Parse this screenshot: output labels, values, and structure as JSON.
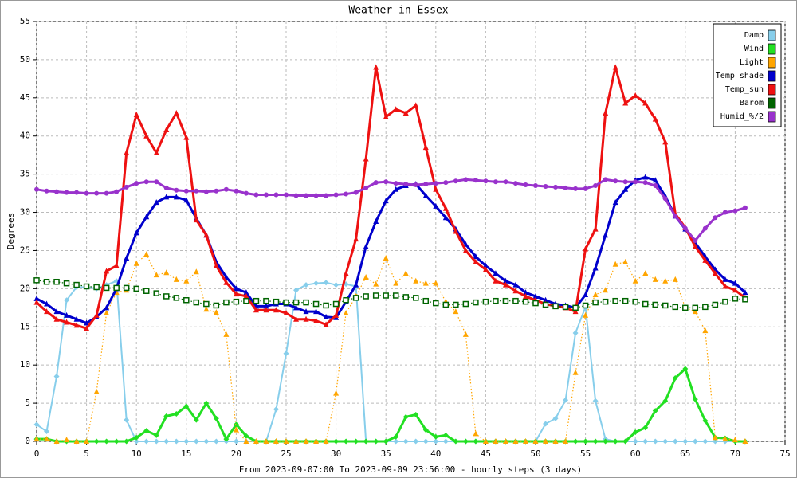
{
  "chart_data": {
    "type": "line",
    "title": "Weather in Essex",
    "ylabel": "Degrees",
    "xlabel": "From 2023-09-07:00 To 2023-09-09 23:56:00 - hourly steps (3 days)",
    "x": [
      0,
      1,
      2,
      3,
      4,
      5,
      6,
      7,
      8,
      9,
      10,
      11,
      12,
      13,
      14,
      15,
      16,
      17,
      18,
      19,
      20,
      21,
      22,
      23,
      24,
      25,
      26,
      27,
      28,
      29,
      30,
      31,
      32,
      33,
      34,
      35,
      36,
      37,
      38,
      39,
      40,
      41,
      42,
      43,
      44,
      45,
      46,
      47,
      48,
      49,
      50,
      51,
      52,
      53,
      54,
      55,
      56,
      57,
      58,
      59,
      60,
      61,
      62,
      63,
      64,
      65,
      66,
      67,
      68,
      69,
      70,
      71
    ],
    "xlim": [
      0,
      75
    ],
    "xticks": [
      0,
      5,
      10,
      15,
      20,
      25,
      30,
      35,
      40,
      45,
      50,
      55,
      60,
      65,
      70,
      75
    ],
    "ylim": [
      0,
      55
    ],
    "yticks": [
      0,
      5,
      10,
      15,
      20,
      25,
      30,
      35,
      40,
      45,
      50,
      55
    ],
    "grid": true,
    "legend": "upper right",
    "series": [
      {
        "name": "Damp",
        "color": "#87ceeb",
        "marker": "diamond",
        "line_style": "solid",
        "values": [
          2.2,
          1.3,
          8.5,
          18.5,
          20.2,
          20.2,
          20,
          20.5,
          21,
          2.8,
          0,
          0,
          0,
          0,
          0,
          0,
          0,
          0,
          0,
          0,
          0,
          0,
          0,
          0,
          4.2,
          11.5,
          19.8,
          20.5,
          20.7,
          20.8,
          20.5,
          20.6,
          20.3,
          0,
          0,
          0,
          0,
          0,
          0,
          0,
          0,
          0,
          0,
          0,
          0,
          0,
          0,
          0,
          0,
          0,
          0,
          2.3,
          3,
          5.4,
          14.2,
          17.6,
          5.3,
          0.3,
          0,
          0,
          0,
          0,
          0,
          0,
          0,
          0,
          0,
          0,
          0,
          0,
          0,
          0
        ]
      },
      {
        "name": "Wind",
        "color": "#22e022",
        "marker": "diamond",
        "line_style": "thick",
        "values": [
          0.3,
          0.3,
          0,
          0,
          0,
          0,
          0,
          0,
          0,
          0,
          0.5,
          1.4,
          0.8,
          3.3,
          3.6,
          4.6,
          2.8,
          5,
          3,
          0.3,
          2.2,
          0.7,
          0,
          0,
          0,
          0,
          0,
          0,
          0,
          0,
          0,
          0,
          0,
          0,
          0,
          0,
          0.6,
          3.2,
          3.5,
          1.5,
          0.6,
          0.8,
          0,
          0,
          0,
          0,
          0,
          0,
          0,
          0,
          0,
          0,
          0,
          0,
          0,
          0,
          0,
          0,
          0,
          0,
          1.2,
          1.8,
          4,
          5.3,
          8.3,
          9.5,
          5.5,
          2.7,
          0.5,
          0.4,
          0,
          0
        ]
      },
      {
        "name": "Light",
        "color": "#ffa500",
        "marker": "triangle",
        "line_style": "dotted",
        "values": [
          0.3,
          0.3,
          0,
          0.2,
          0,
          0,
          6.5,
          16.8,
          19.5,
          19.8,
          23.3,
          24.5,
          21.8,
          22.1,
          21.2,
          21,
          22.2,
          17.3,
          16.9,
          14,
          1.5,
          0,
          0,
          0,
          0,
          0,
          0,
          0,
          0,
          0,
          6.3,
          16.8,
          19,
          21.5,
          20.6,
          24,
          20.7,
          22,
          21,
          20.7,
          20.7,
          18.3,
          17,
          14,
          1,
          0,
          0,
          0,
          0,
          0,
          0,
          0,
          0,
          0,
          9,
          16.5,
          19.2,
          19.8,
          23.2,
          23.5,
          21,
          22,
          21.2,
          21,
          21.2,
          17.5,
          17,
          14.5,
          0.5,
          0.3,
          0.2,
          0
        ]
      },
      {
        "name": "Temp_shade",
        "color": "#0000cc",
        "marker": "triangle",
        "line_style": "thick",
        "values": [
          18.7,
          18,
          17,
          16.5,
          16,
          15.5,
          16.3,
          17.5,
          20,
          24,
          27.3,
          29.4,
          31.3,
          32,
          32,
          31.6,
          29.2,
          27,
          23.5,
          21.5,
          20,
          19.5,
          17.7,
          17.7,
          18,
          18,
          17.5,
          17,
          17,
          16.3,
          16.2,
          18.3,
          20.5,
          25.5,
          28.8,
          31.5,
          33,
          33.5,
          33.7,
          32.2,
          30.8,
          29.3,
          27.8,
          25.8,
          24.2,
          23,
          22,
          21,
          20.5,
          19.5,
          19,
          18.5,
          18,
          17.8,
          17.5,
          19.2,
          22.7,
          27,
          31.3,
          33,
          34.2,
          34.6,
          34.2,
          32.1,
          29.5,
          27.8,
          26,
          24.2,
          22.5,
          21.2,
          20.7,
          19.5
        ]
      },
      {
        "name": "Temp_sun",
        "color": "#ee1111",
        "marker": "triangle",
        "line_style": "thick",
        "values": [
          18.2,
          17,
          16,
          15.6,
          15.2,
          14.8,
          16.5,
          22.3,
          23,
          37.8,
          42.8,
          40,
          37.8,
          40.8,
          43,
          39.8,
          29,
          27,
          23,
          20.8,
          19.3,
          19,
          17.2,
          17.2,
          17.2,
          16.8,
          16,
          16,
          15.8,
          15.3,
          16.5,
          22,
          26.5,
          37,
          49,
          42.5,
          43.5,
          43,
          44,
          38.5,
          33,
          30.5,
          27.5,
          25,
          23.5,
          22.5,
          21,
          20.5,
          19.7,
          19,
          18.5,
          18,
          17.7,
          17.5,
          17,
          25.2,
          27.8,
          43,
          49,
          44.3,
          45.3,
          44.3,
          42.2,
          39.2,
          29.8,
          28,
          25.5,
          23.7,
          22,
          20.3,
          19.8,
          18.8
        ]
      },
      {
        "name": "Barom",
        "color": "#006400",
        "marker": "square",
        "line_style": "dotted",
        "values": [
          21.1,
          20.9,
          20.9,
          20.7,
          20.5,
          20.3,
          20.2,
          20.1,
          20.1,
          20.1,
          20,
          19.7,
          19.4,
          19,
          18.8,
          18.5,
          18.2,
          18,
          17.8,
          18.2,
          18.3,
          18.4,
          18.4,
          18.4,
          18.3,
          18.2,
          18.2,
          18.2,
          18,
          17.8,
          18,
          18.5,
          18.8,
          19,
          19.1,
          19.1,
          19.1,
          18.9,
          18.8,
          18.4,
          18.1,
          17.9,
          17.9,
          18,
          18.2,
          18.3,
          18.4,
          18.4,
          18.4,
          18.3,
          18.1,
          17.9,
          17.7,
          17.6,
          17.5,
          17.8,
          18.2,
          18.3,
          18.4,
          18.4,
          18.3,
          18,
          17.9,
          17.8,
          17.6,
          17.5,
          17.5,
          17.6,
          17.9,
          18.3,
          18.7,
          18.6
        ]
      },
      {
        "name": "Humid_%/2",
        "color": "#9932cc",
        "marker": "circle",
        "line_style": "thick",
        "values": [
          33,
          32.8,
          32.7,
          32.6,
          32.6,
          32.5,
          32.5,
          32.5,
          32.7,
          33.3,
          33.8,
          34,
          34,
          33.2,
          32.9,
          32.8,
          32.8,
          32.7,
          32.8,
          33,
          32.8,
          32.5,
          32.3,
          32.3,
          32.3,
          32.3,
          32.2,
          32.2,
          32.2,
          32.2,
          32.3,
          32.4,
          32.6,
          33.2,
          33.9,
          34,
          33.8,
          33.7,
          33.6,
          33.7,
          33.8,
          33.9,
          34.1,
          34.3,
          34.2,
          34.1,
          34,
          34,
          33.8,
          33.6,
          33.5,
          33.4,
          33.3,
          33.2,
          33.1,
          33.1,
          33.5,
          34.3,
          34.1,
          34,
          34,
          33.9,
          33.5,
          31.8,
          29.5,
          27.9,
          26.3,
          27.9,
          29.3,
          30,
          30.2,
          30.6
        ]
      }
    ]
  }
}
